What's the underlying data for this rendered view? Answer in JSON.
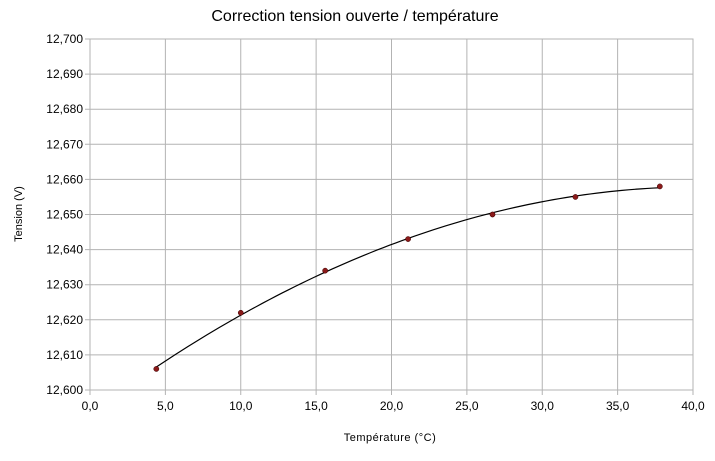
{
  "chart_data": {
    "type": "scatter",
    "title": "Correction tension ouverte / température",
    "xlabel": "Température (°C)",
    "ylabel": "Tension (V)",
    "xlim": [
      0,
      40
    ],
    "ylim": [
      12.6,
      12.7
    ],
    "x_ticks": [
      "0,0",
      "5,0",
      "10,0",
      "15,0",
      "20,0",
      "25,0",
      "30,0",
      "35,0",
      "40,0"
    ],
    "y_ticks": [
      "12,600",
      "12,610",
      "12,620",
      "12,630",
      "12,640",
      "12,650",
      "12,660",
      "12,670",
      "12,680",
      "12,690",
      "12,700"
    ],
    "grid": true,
    "legend": "none",
    "series": [
      {
        "points": [
          {
            "x": 4.4,
            "y": 12.606
          },
          {
            "x": 10.0,
            "y": 12.622
          },
          {
            "x": 15.6,
            "y": 12.634
          },
          {
            "x": 21.1,
            "y": 12.643
          },
          {
            "x": 26.7,
            "y": 12.65
          },
          {
            "x": 32.2,
            "y": 12.655
          },
          {
            "x": 37.8,
            "y": 12.658
          }
        ],
        "marker_color": "#8b1a1a",
        "trendline": {
          "type": "polynomial",
          "degree": 2,
          "color": "#000000"
        }
      }
    ]
  }
}
